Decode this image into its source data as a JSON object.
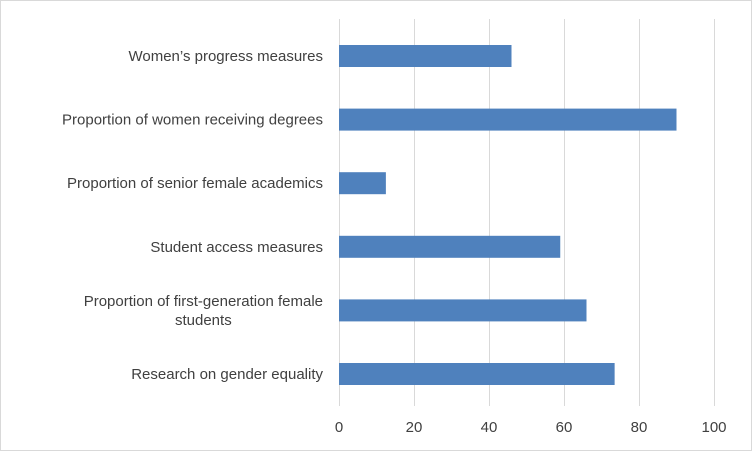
{
  "chart_data": {
    "type": "bar",
    "orientation": "horizontal",
    "title": "",
    "xlabel": "",
    "ylabel": "",
    "categories": [
      "Women’s progress measures",
      "Proportion of women receiving degrees",
      "Proportion of senior female academics",
      "Student access measures",
      "Proportion of first-generation female students",
      "Research on gender equality"
    ],
    "category_label_lines": [
      [
        "Women’s progress measures"
      ],
      [
        "Proportion of women receiving degrees"
      ],
      [
        "Proportion of senior female academics"
      ],
      [
        "Student access measures"
      ],
      [
        "Proportion of first-generation female",
        "students"
      ],
      [
        "Research on gender equality"
      ]
    ],
    "values": [
      46,
      90,
      12.5,
      59,
      66,
      73.5
    ],
    "xlim": [
      0,
      100
    ],
    "xticks": [
      0,
      20,
      40,
      60,
      80,
      100
    ],
    "grid": true,
    "legend": "none",
    "bar_color": "#4f81bd",
    "grid_color": "#d9d9d9",
    "text_color": "#404040"
  }
}
